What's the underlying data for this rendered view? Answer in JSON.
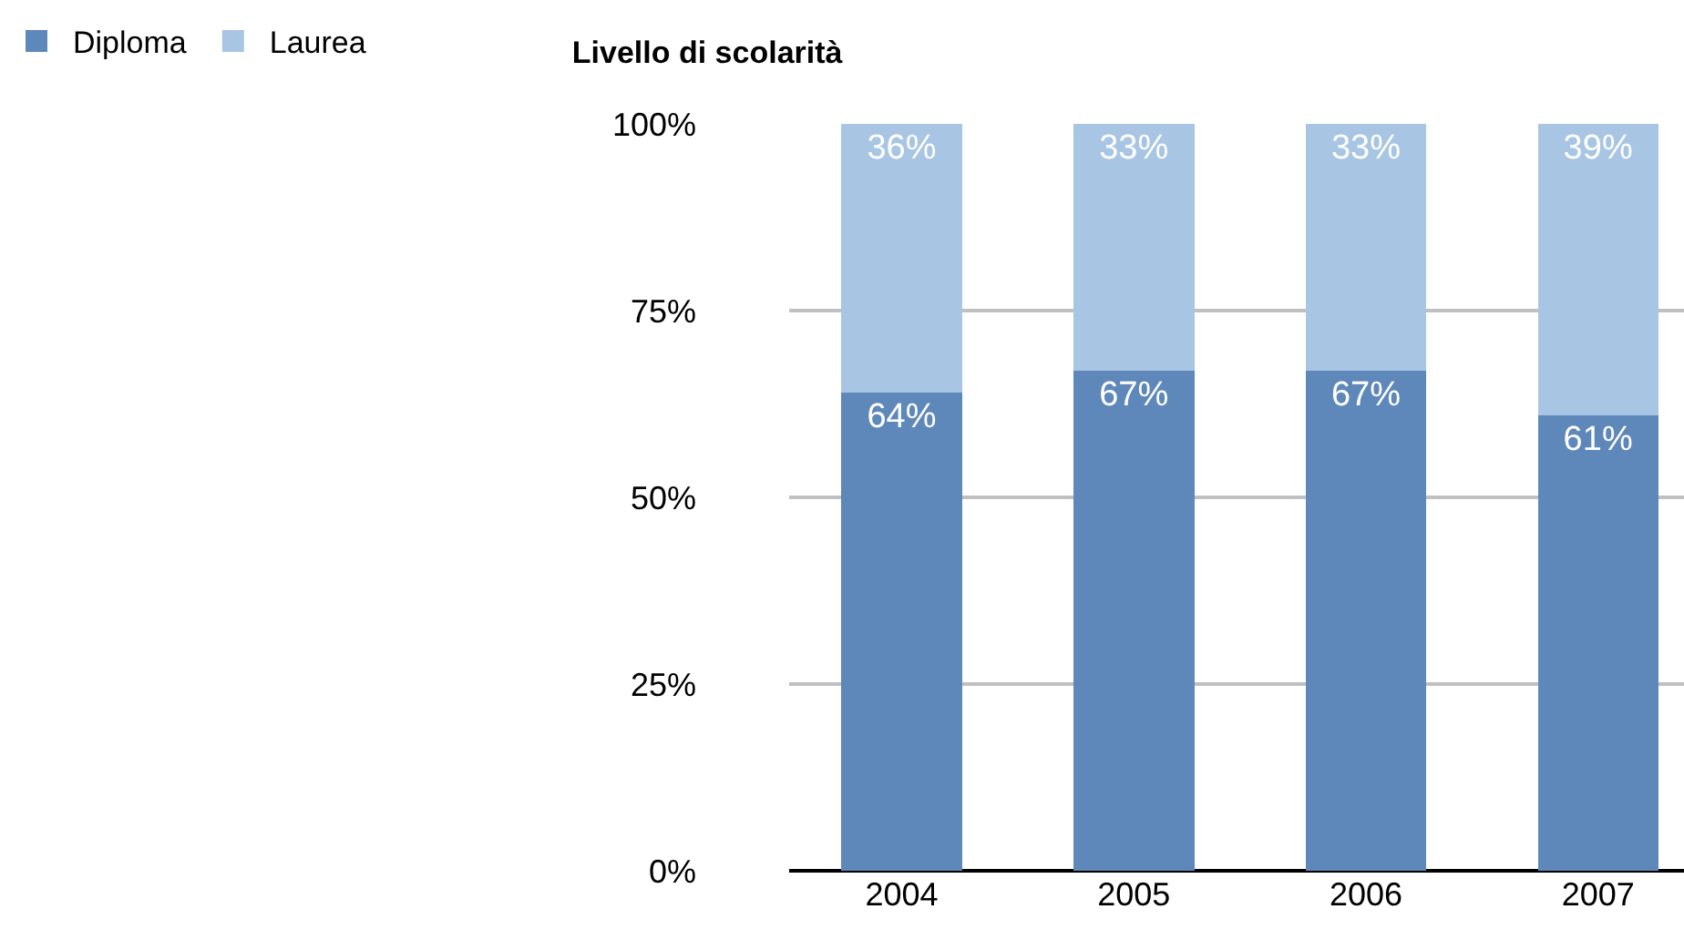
{
  "chart_data": {
    "type": "bar",
    "title": "Livello di scolarità",
    "stacked": true,
    "categories": [
      "2004",
      "2005",
      "2006",
      "2007"
    ],
    "series": [
      {
        "name": "Diploma",
        "color": "#5f88ba",
        "values": [
          64,
          67,
          67,
          61
        ],
        "value_labels": [
          "64%",
          "67%",
          "67%",
          "61%"
        ]
      },
      {
        "name": "Laurea",
        "color": "#a8c6e3",
        "values": [
          36,
          33,
          33,
          39
        ],
        "value_labels": [
          "36%",
          "33%",
          "33%",
          "39%"
        ]
      }
    ],
    "ylim": [
      0,
      100
    ],
    "yticks": [
      {
        "value": 0,
        "label": "0%"
      },
      {
        "value": 25,
        "label": "25%"
      },
      {
        "value": 50,
        "label": "50%"
      },
      {
        "value": 75,
        "label": "75%"
      },
      {
        "value": 100,
        "label": "100%"
      }
    ],
    "grid": "y",
    "legend": "top left"
  }
}
